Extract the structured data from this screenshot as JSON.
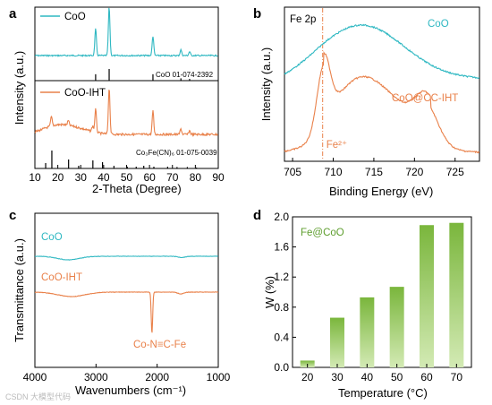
{
  "colors": {
    "cyan": "#2fb8c2",
    "orange": "#e9814a",
    "green": "#8cc252",
    "green_dark": "#5e9e2e"
  },
  "chart_data": [
    {
      "panel": "a",
      "type": "line",
      "xlabel": "2-Theta (Degree)",
      "ylabel": "Intensity (a.u.)",
      "xlim": [
        10,
        90
      ],
      "xticks": [
        10,
        20,
        30,
        40,
        50,
        60,
        70,
        80,
        90
      ],
      "series": [
        {
          "name": "CoO",
          "color": "#2fb8c2",
          "peaks": [
            {
              "x": 36.5,
              "h": 0.55
            },
            {
              "x": 42.4,
              "h": 1.0
            },
            {
              "x": 61.5,
              "h": 0.4
            },
            {
              "x": 73.7,
              "h": 0.12
            },
            {
              "x": 77.5,
              "h": 0.08
            }
          ],
          "reference": {
            "label": "CoO 01-074-2392",
            "sticks": [
              {
                "x": 36.5,
                "h": 0.55
              },
              {
                "x": 42.4,
                "h": 1.0
              },
              {
                "x": 61.5,
                "h": 0.55
              },
              {
                "x": 73.7,
                "h": 0.2
              },
              {
                "x": 77.5,
                "h": 0.15
              }
            ]
          }
        },
        {
          "name": "CoO-IHT",
          "color": "#e9814a",
          "peaks": [
            {
              "x": 17.2,
              "h": 0.2
            },
            {
              "x": 24.6,
              "h": 0.1
            },
            {
              "x": 35.2,
              "h": 0.12
            },
            {
              "x": 36.5,
              "h": 0.5
            },
            {
              "x": 42.4,
              "h": 1.0
            },
            {
              "x": 61.5,
              "h": 0.5
            },
            {
              "x": 73.7,
              "h": 0.12
            },
            {
              "x": 77.5,
              "h": 0.08
            }
          ],
          "reference": {
            "label": "Co₃Fe(CN)₆ 01-075-0039",
            "sticks": [
              {
                "x": 14.7,
                "h": 0.3
              },
              {
                "x": 17.4,
                "h": 1.0
              },
              {
                "x": 24.7,
                "h": 0.5
              },
              {
                "x": 29.1,
                "h": 0.15
              },
              {
                "x": 35.3,
                "h": 0.45
              },
              {
                "x": 39.5,
                "h": 0.35
              },
              {
                "x": 44.5,
                "h": 0.15
              },
              {
                "x": 50.3,
                "h": 0.1
              },
              {
                "x": 54.2,
                "h": 0.1
              },
              {
                "x": 57.5,
                "h": 0.15
              },
              {
                "x": 61.9,
                "h": 0.1
              },
              {
                "x": 67.9,
                "h": 0.1
              },
              {
                "x": 72.0,
                "h": 0.08
              },
              {
                "x": 76.5,
                "h": 0.08
              },
              {
                "x": 80.5,
                "h": 0.05
              }
            ]
          }
        }
      ]
    },
    {
      "panel": "b",
      "type": "line",
      "title": "Fe 2p",
      "xlabel": "Binding Energy (eV)",
      "ylabel": "Intensity (a.u.)",
      "xlim": [
        704,
        728
      ],
      "xticks": [
        705,
        710,
        715,
        720,
        725
      ],
      "annotation": "Fe²⁺",
      "annotation_x": 708.7,
      "series": [
        {
          "name": "CoO",
          "color": "#2fb8c2"
        },
        {
          "name": "CoO@CC-IHT",
          "color": "#e9814a"
        }
      ]
    },
    {
      "panel": "c",
      "type": "line",
      "xlabel": "Wavenumbers (cm⁻¹)",
      "ylabel": "Transmittance (a.u.)",
      "xlim": [
        4000,
        1000
      ],
      "xticks": [
        4000,
        3000,
        2000,
        1000
      ],
      "annotation": "Co-N≡C-Fe",
      "annotation_x": 2085,
      "series": [
        {
          "name": "CoO",
          "color": "#2fb8c2"
        },
        {
          "name": "CoO-IHT",
          "color": "#e9814a"
        }
      ]
    },
    {
      "panel": "d",
      "type": "bar",
      "title": "Fe@CoO",
      "xlabel": "Temperature (°C)",
      "ylabel": "W (%)",
      "categories": [
        "20",
        "30",
        "40",
        "50",
        "60",
        "70"
      ],
      "values": [
        0.09,
        0.66,
        0.93,
        1.07,
        1.89,
        1.92
      ],
      "ylim": [
        0,
        2.0
      ],
      "yticks": [
        0.0,
        0.4,
        0.8,
        1.2,
        1.6,
        2.0
      ]
    }
  ],
  "watermark": "CSDN 大模型代码"
}
